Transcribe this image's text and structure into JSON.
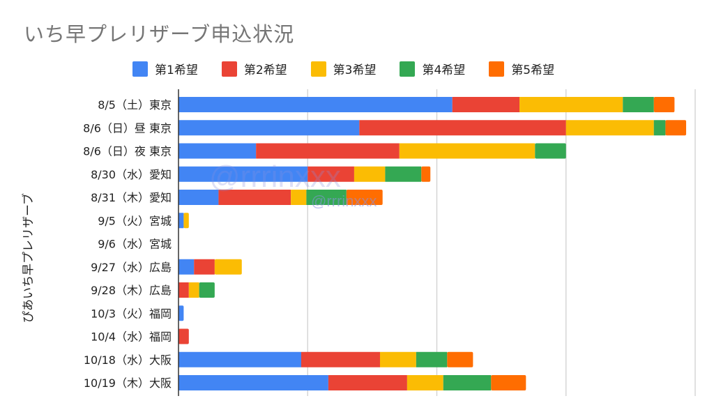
{
  "chart_data": {
    "type": "bar",
    "orientation": "horizontal",
    "stacked": true,
    "title": "いち早プレリザーブ申込状況",
    "xlabel": "",
    "ylabel": "ぴあいち早プレリザーブ",
    "xlim": [
      0,
      400
    ],
    "grid": true,
    "legend_position": "top",
    "categories": [
      "8/5（土）東京",
      "8/6（日）昼 東京",
      "8/6（日）夜 東京",
      "8/30（水）愛知",
      "8/31（木）愛知",
      "9/5（火）宮城",
      "9/6（水）宮城",
      "9/27（水）広島",
      "9/28（木）広島",
      "10/3（火）福岡",
      "10/4（水）福岡",
      "10/18（水）大阪",
      "10/19（木）大阪"
    ],
    "series": [
      {
        "name": "第1希望",
        "color": "#4285f4",
        "values": [
          212,
          140,
          60,
          100,
          31,
          4,
          0,
          12,
          0,
          4,
          0,
          95,
          116
        ]
      },
      {
        "name": "第2希望",
        "color": "#ea4335",
        "values": [
          52,
          160,
          111,
          36,
          56,
          0,
          0,
          16,
          8,
          0,
          8,
          61,
          61
        ]
      },
      {
        "name": "第3希望",
        "color": "#fbbc04",
        "values": [
          80,
          68,
          105,
          24,
          12,
          4,
          0,
          21,
          8,
          0,
          0,
          28,
          28
        ]
      },
      {
        "name": "第4希望",
        "color": "#34a853",
        "values": [
          24,
          9,
          24,
          28,
          31,
          0,
          0,
          0,
          12,
          0,
          0,
          24,
          37
        ]
      },
      {
        "name": "第5希望",
        "color": "#ff6d01",
        "values": [
          16,
          16,
          0,
          7,
          28,
          0,
          0,
          0,
          0,
          0,
          0,
          20,
          27
        ]
      }
    ]
  },
  "watermark": "@rrrinxxx"
}
